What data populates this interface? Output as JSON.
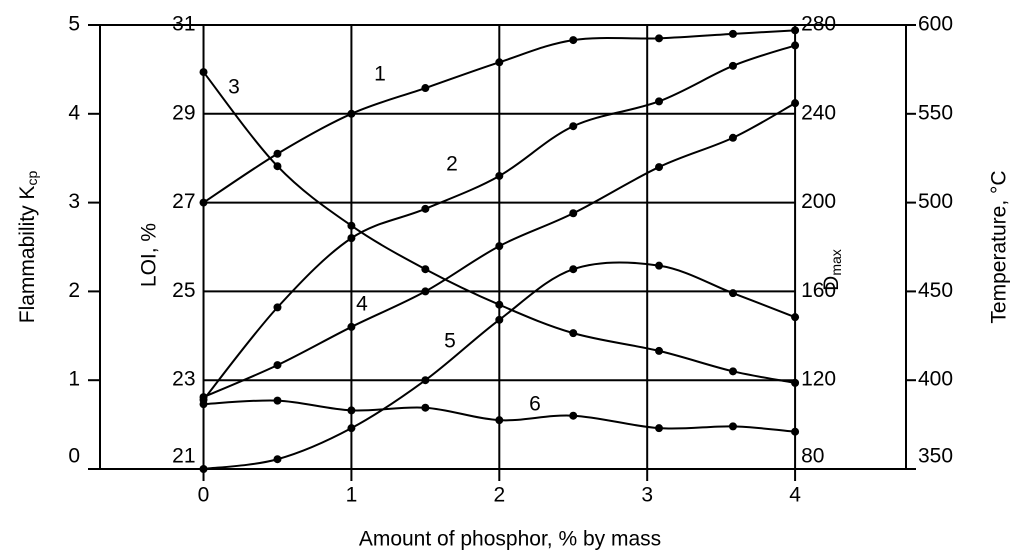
{
  "chart_data": {
    "type": "line",
    "xlabel": "Amount of phosphor, % by mass",
    "x": [
      0,
      0.5,
      1,
      1.5,
      2,
      2.5,
      3.08,
      3.58,
      4
    ],
    "xlim": [
      -0.7,
      4.75
    ],
    "xticks": [
      0,
      1,
      2,
      3,
      4
    ],
    "ylabel": "Flammability K",
    "ylabel_sub": "cp",
    "ylim": [
      0,
      5
    ],
    "yticks": [
      0,
      1,
      2,
      3,
      4,
      5
    ],
    "loi_axis": {
      "label": "LOI, %",
      "lim": [
        21,
        31
      ],
      "ticks": [
        21,
        23,
        25,
        27,
        29,
        31
      ]
    },
    "dmax_axis": {
      "label": "D",
      "label_sub": "max",
      "lim": [
        80,
        280
      ],
      "ticks": [
        80,
        120,
        160,
        200,
        240,
        280
      ]
    },
    "y2label": "Temperature, °C",
    "y2lim": [
      350,
      600
    ],
    "y2ticks": [
      350,
      400,
      450,
      500,
      550,
      600
    ],
    "grid": true,
    "series": [
      {
        "name": "1",
        "color": "#000000",
        "values": [
          3.0,
          3.55,
          4.0,
          4.29,
          4.58,
          4.83,
          4.85,
          4.9,
          4.94
        ]
      },
      {
        "name": "2",
        "color": "#000000",
        "values": [
          0.78,
          1.82,
          2.6,
          2.93,
          3.3,
          3.86,
          4.14,
          4.54,
          4.77
        ]
      },
      {
        "name": "3",
        "color": "#000000",
        "values": [
          4.47,
          3.41,
          2.74,
          2.25,
          1.85,
          1.53,
          1.33,
          1.1,
          0.97
        ]
      },
      {
        "name": "4",
        "color": "#000000",
        "values": [
          0.81,
          1.17,
          1.6,
          2.0,
          2.51,
          2.88,
          3.4,
          3.73,
          4.12
        ]
      },
      {
        "name": "5",
        "color": "#000000",
        "values": [
          0,
          0.11,
          0.46,
          1.0,
          1.68,
          2.25,
          2.29,
          1.98,
          1.71
        ]
      },
      {
        "name": "6",
        "color": "#000000",
        "values": [
          0.73,
          0.77,
          0.66,
          0.69,
          0.55,
          0.6,
          0.46,
          0.48,
          0.42
        ]
      }
    ]
  }
}
